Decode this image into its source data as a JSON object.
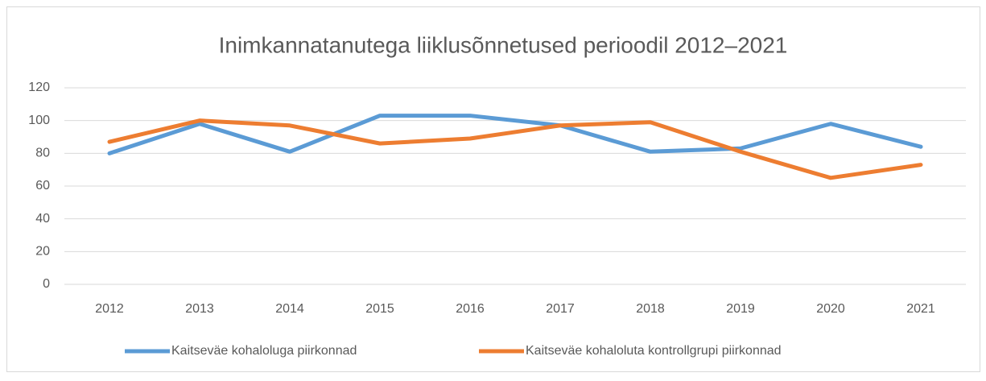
{
  "chart_data": {
    "type": "line",
    "title": "Inimkannatanutega liiklusõnnetused perioodil 2012–2021",
    "categories": [
      "2012",
      "2013",
      "2014",
      "2015",
      "2016",
      "2017",
      "2018",
      "2019",
      "2020",
      "2021"
    ],
    "series": [
      {
        "name": "Kaitseväe kohaloluga piirkonnad",
        "color": "#5b9bd5",
        "values": [
          80,
          98,
          81,
          103,
          103,
          97,
          81,
          83,
          98,
          84
        ]
      },
      {
        "name": "Kaitseväe kohaloluta kontrollgrupi piirkonnad",
        "color": "#ed7d31",
        "values": [
          87,
          100,
          97,
          86,
          89,
          97,
          99,
          81,
          65,
          73
        ]
      }
    ],
    "ylim": [
      0,
      120
    ],
    "yticks": [
      0,
      20,
      40,
      60,
      80,
      100,
      120
    ],
    "grid": true,
    "legend": "bottom"
  }
}
